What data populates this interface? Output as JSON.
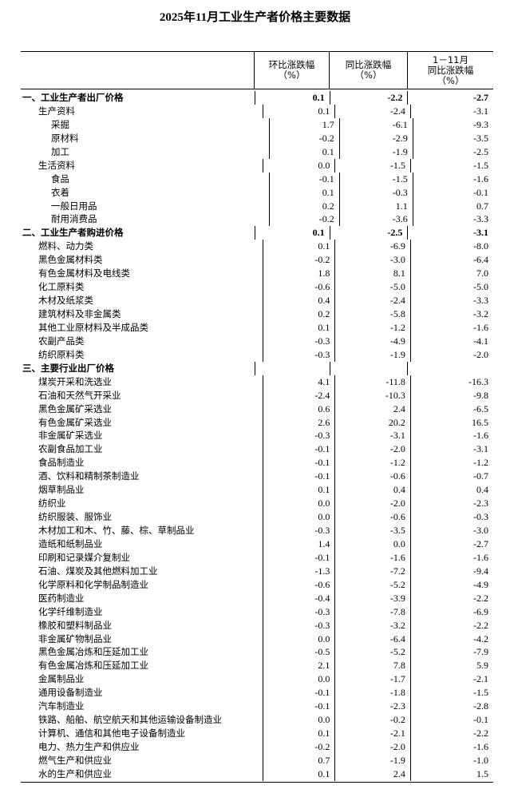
{
  "title": "2025年11月工业生产者价格主要数据",
  "headers": {
    "mom": [
      "环比涨跌幅",
      "（%）"
    ],
    "yoy": [
      "同比涨跌幅",
      "（%）"
    ],
    "ytd": [
      "1－11月",
      "同比涨跌幅",
      "（%）"
    ]
  },
  "rows": [
    {
      "label": "一、工业生产者出厂价格",
      "level": 0,
      "bold": true,
      "mom": "0.1",
      "yoy": "-2.2",
      "ytd": "-2.7"
    },
    {
      "label": "生产资料",
      "level": 1,
      "mom": "0.1",
      "yoy": "-2.4",
      "ytd": "-3.1"
    },
    {
      "label": "采掘",
      "level": 2,
      "mom": "1.7",
      "yoy": "-6.1",
      "ytd": "-9.3"
    },
    {
      "label": "原材料",
      "level": 2,
      "mom": "-0.2",
      "yoy": "-2.9",
      "ytd": "-3.5"
    },
    {
      "label": "加工",
      "level": 2,
      "mom": "0.1",
      "yoy": "-1.9",
      "ytd": "-2.5"
    },
    {
      "label": "生活资料",
      "level": 1,
      "mom": "0.0",
      "yoy": "-1.5",
      "ytd": "-1.5"
    },
    {
      "label": "食品",
      "level": 2,
      "mom": "-0.1",
      "yoy": "-1.5",
      "ytd": "-1.6"
    },
    {
      "label": "衣着",
      "level": 2,
      "mom": "0.1",
      "yoy": "-0.3",
      "ytd": "-0.1"
    },
    {
      "label": "一般日用品",
      "level": 2,
      "mom": "0.2",
      "yoy": "1.1",
      "ytd": "0.7"
    },
    {
      "label": "耐用消费品",
      "level": 2,
      "mom": "-0.2",
      "yoy": "-3.6",
      "ytd": "-3.3"
    },
    {
      "label": "二、工业生产者购进价格",
      "level": 0,
      "bold": true,
      "mom": "0.1",
      "yoy": "-2.5",
      "ytd": "-3.1"
    },
    {
      "label": "燃料、动力类",
      "level": 1,
      "mom": "0.1",
      "yoy": "-6.9",
      "ytd": "-8.0"
    },
    {
      "label": "黑色金属材料类",
      "level": 1,
      "mom": "-0.2",
      "yoy": "-3.0",
      "ytd": "-6.4"
    },
    {
      "label": "有色金属材料及电线类",
      "level": 1,
      "mom": "1.8",
      "yoy": "8.1",
      "ytd": "7.0"
    },
    {
      "label": "化工原料类",
      "level": 1,
      "mom": "-0.6",
      "yoy": "-5.0",
      "ytd": "-5.0"
    },
    {
      "label": "木材及纸浆类",
      "level": 1,
      "mom": "0.4",
      "yoy": "-2.4",
      "ytd": "-3.3"
    },
    {
      "label": "建筑材料及非金属类",
      "level": 1,
      "mom": "0.2",
      "yoy": "-5.8",
      "ytd": "-3.2"
    },
    {
      "label": "其他工业原材料及半成品类",
      "level": 1,
      "mom": "0.1",
      "yoy": "-1.2",
      "ytd": "-1.6"
    },
    {
      "label": "农副产品类",
      "level": 1,
      "mom": "-0.3",
      "yoy": "-4.9",
      "ytd": "-4.1"
    },
    {
      "label": "纺织原料类",
      "level": 1,
      "mom": "-0.3",
      "yoy": "-1.9",
      "ytd": "-2.0"
    },
    {
      "label": "三、主要行业出厂价格",
      "level": 0,
      "bold": true,
      "mom": "",
      "yoy": "",
      "ytd": ""
    },
    {
      "label": "煤炭开采和洗选业",
      "level": 1,
      "mom": "4.1",
      "yoy": "-11.8",
      "ytd": "-16.3"
    },
    {
      "label": "石油和天然气开采业",
      "level": 1,
      "mom": "-2.4",
      "yoy": "-10.3",
      "ytd": "-9.8"
    },
    {
      "label": "黑色金属矿采选业",
      "level": 1,
      "mom": "0.6",
      "yoy": "2.4",
      "ytd": "-6.5"
    },
    {
      "label": "有色金属矿采选业",
      "level": 1,
      "mom": "2.6",
      "yoy": "20.2",
      "ytd": "16.5"
    },
    {
      "label": "非金属矿采选业",
      "level": 1,
      "mom": "-0.3",
      "yoy": "-3.1",
      "ytd": "-1.6"
    },
    {
      "label": "农副食品加工业",
      "level": 1,
      "mom": "-0.1",
      "yoy": "-2.0",
      "ytd": "-3.1"
    },
    {
      "label": "食品制造业",
      "level": 1,
      "mom": "-0.1",
      "yoy": "-1.2",
      "ytd": "-1.2"
    },
    {
      "label": "酒、饮料和精制茶制造业",
      "level": 1,
      "mom": "-0.1",
      "yoy": "-0.6",
      "ytd": "-0.7"
    },
    {
      "label": "烟草制品业",
      "level": 1,
      "mom": "0.1",
      "yoy": "0.4",
      "ytd": "0.4"
    },
    {
      "label": "纺织业",
      "level": 1,
      "mom": "0.0",
      "yoy": "-2.0",
      "ytd": "-2.3"
    },
    {
      "label": "纺织服装、服饰业",
      "level": 1,
      "mom": "0.0",
      "yoy": "-0.6",
      "ytd": "-0.3"
    },
    {
      "label": "木材加工和木、竹、藤、棕、草制品业",
      "level": 1,
      "mom": "-0.3",
      "yoy": "-3.5",
      "ytd": "-3.0"
    },
    {
      "label": "造纸和纸制品业",
      "level": 1,
      "mom": "1.4",
      "yoy": "0.0",
      "ytd": "-2.7"
    },
    {
      "label": "印刷和记录媒介复制业",
      "level": 1,
      "mom": "-0.1",
      "yoy": "-1.6",
      "ytd": "-1.6"
    },
    {
      "label": "石油、煤炭及其他燃料加工业",
      "level": 1,
      "mom": "-1.3",
      "yoy": "-7.2",
      "ytd": "-9.4"
    },
    {
      "label": "化学原料和化学制品制造业",
      "level": 1,
      "mom": "-0.6",
      "yoy": "-5.2",
      "ytd": "-4.9"
    },
    {
      "label": "医药制造业",
      "level": 1,
      "mom": "-0.4",
      "yoy": "-3.9",
      "ytd": "-2.2"
    },
    {
      "label": "化学纤维制造业",
      "level": 1,
      "mom": "-0.3",
      "yoy": "-7.8",
      "ytd": "-6.9"
    },
    {
      "label": "橡胶和塑料制品业",
      "level": 1,
      "mom": "-0.3",
      "yoy": "-3.2",
      "ytd": "-2.2"
    },
    {
      "label": "非金属矿物制品业",
      "level": 1,
      "mom": "0.0",
      "yoy": "-6.4",
      "ytd": "-4.2"
    },
    {
      "label": "黑色金属冶炼和压延加工业",
      "level": 1,
      "mom": "-0.5",
      "yoy": "-5.2",
      "ytd": "-7.9"
    },
    {
      "label": "有色金属冶炼和压延加工业",
      "level": 1,
      "mom": "2.1",
      "yoy": "7.8",
      "ytd": "5.9"
    },
    {
      "label": "金属制品业",
      "level": 1,
      "mom": "0.0",
      "yoy": "-1.7",
      "ytd": "-2.1"
    },
    {
      "label": "通用设备制造业",
      "level": 1,
      "mom": "-0.1",
      "yoy": "-1.8",
      "ytd": "-1.5"
    },
    {
      "label": "汽车制造业",
      "level": 1,
      "mom": "-0.1",
      "yoy": "-2.3",
      "ytd": "-2.8"
    },
    {
      "label": "铁路、船舶、航空航天和其他运输设备制造业",
      "level": 1,
      "mom": "0.0",
      "yoy": "-0.2",
      "ytd": "-0.1"
    },
    {
      "label": "计算机、通信和其他电子设备制造业",
      "level": 1,
      "mom": "0.1",
      "yoy": "-2.1",
      "ytd": "-2.2"
    },
    {
      "label": "电力、热力生产和供应业",
      "level": 1,
      "mom": "-0.2",
      "yoy": "-2.0",
      "ytd": "-1.6"
    },
    {
      "label": "燃气生产和供应业",
      "level": 1,
      "mom": "0.7",
      "yoy": "-1.9",
      "ytd": "-1.0"
    },
    {
      "label": "水的生产和供应业",
      "level": 1,
      "mom": "0.1",
      "yoy": "2.4",
      "ytd": "1.5"
    }
  ]
}
